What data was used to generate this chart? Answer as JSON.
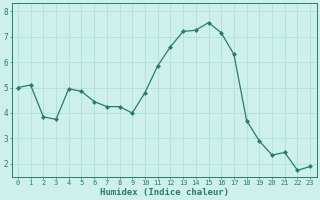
{
  "x": [
    0,
    1,
    2,
    3,
    4,
    5,
    6,
    7,
    8,
    9,
    10,
    11,
    12,
    13,
    14,
    15,
    16,
    17,
    18,
    19,
    20,
    21,
    22,
    23
  ],
  "y": [
    5.0,
    5.1,
    3.85,
    3.75,
    4.95,
    4.85,
    4.45,
    4.25,
    4.25,
    4.0,
    4.8,
    5.85,
    6.6,
    7.2,
    7.25,
    7.55,
    7.15,
    6.3,
    3.7,
    2.9,
    2.35,
    2.45,
    1.75,
    1.9
  ],
  "line_color": "#2a7a6e",
  "marker": "D",
  "marker_size": 2.0,
  "bg_color": "#cef0ec",
  "grid_color_major": "#aaddd7",
  "grid_color_minor": "#c0e8e3",
  "axis_color": "#2a7a6e",
  "xlabel": "Humidex (Indice chaleur)",
  "xlim": [
    -0.5,
    23.5
  ],
  "ylim": [
    1.5,
    8.3
  ],
  "yticks": [
    2,
    3,
    4,
    5,
    6,
    7,
    8
  ],
  "xticks": [
    0,
    1,
    2,
    3,
    4,
    5,
    6,
    7,
    8,
    9,
    10,
    11,
    12,
    13,
    14,
    15,
    16,
    17,
    18,
    19,
    20,
    21,
    22,
    23
  ],
  "tick_fontsize": 5.0,
  "xlabel_fontsize": 6.5,
  "linewidth": 0.9
}
